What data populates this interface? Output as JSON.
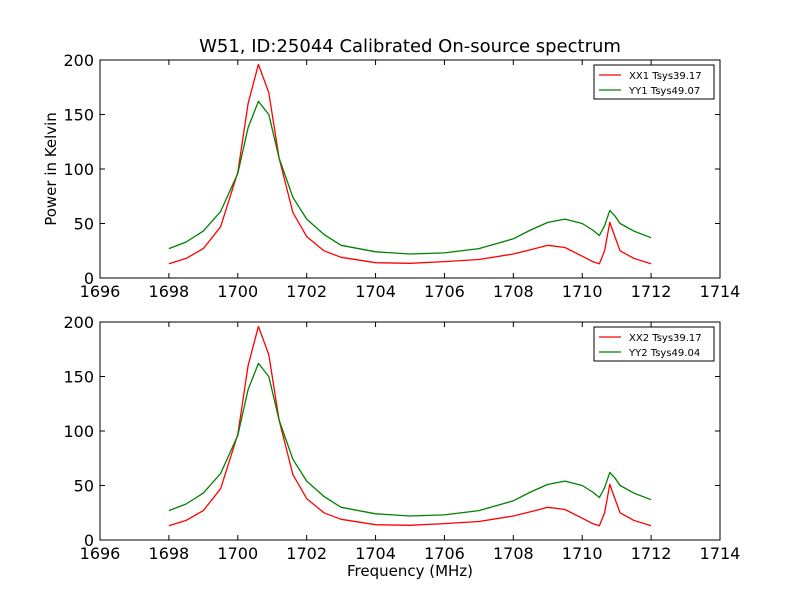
{
  "chart_data": [
    {
      "type": "line",
      "title": "W51, ID:25044 Calibrated On-source spectrum",
      "xlabel": "",
      "ylabel": "Power in Kelvin",
      "xlim": [
        1696,
        1714
      ],
      "ylim": [
        0,
        200
      ],
      "xticks": [
        "1696",
        "1698",
        "1700",
        "1702",
        "1704",
        "1706",
        "1708",
        "1710",
        "1712",
        "1714"
      ],
      "yticks": [
        "0",
        "50",
        "100",
        "150",
        "200"
      ],
      "legend": "top-right",
      "x": [
        1698,
        1698.5,
        1699,
        1699.5,
        1700,
        1700.3,
        1700.6,
        1700.9,
        1701.2,
        1701.6,
        1702,
        1702.5,
        1703,
        1704,
        1705,
        1706,
        1707,
        1708,
        1708.5,
        1709,
        1709.5,
        1710,
        1710.3,
        1710.5,
        1710.65,
        1710.8,
        1710.95,
        1711.1,
        1711.5,
        1712
      ],
      "series": [
        {
          "name": "XX1 Tsys39.17",
          "color": "#ff0000",
          "values": [
            13,
            18,
            27,
            47,
            97,
            160,
            196,
            170,
            110,
            60,
            38,
            25,
            19,
            14,
            13.5,
            15,
            17,
            22,
            26,
            30,
            28,
            20,
            15,
            13,
            25,
            51,
            38,
            25,
            18,
            13
          ]
        },
        {
          "name": "YY1 Tsys49.07",
          "color": "#008000",
          "values": [
            27,
            33,
            43,
            61,
            96,
            138,
            162,
            150,
            110,
            74,
            54,
            40,
            30,
            24,
            22,
            23,
            27,
            36,
            44,
            51,
            54,
            50,
            44,
            39,
            48,
            62,
            57,
            50,
            43,
            37
          ]
        }
      ]
    },
    {
      "type": "line",
      "title": "",
      "xlabel": "Frequency (MHz)",
      "ylabel": "",
      "xlim": [
        1696,
        1714
      ],
      "ylim": [
        0,
        200
      ],
      "xticks": [
        "1696",
        "1698",
        "1700",
        "1702",
        "1704",
        "1706",
        "1708",
        "1710",
        "1712",
        "1714"
      ],
      "yticks": [
        "0",
        "50",
        "100",
        "150",
        "200"
      ],
      "legend": "top-right",
      "x": [
        1698,
        1698.5,
        1699,
        1699.5,
        1700,
        1700.3,
        1700.6,
        1700.9,
        1701.2,
        1701.6,
        1702,
        1702.5,
        1703,
        1704,
        1705,
        1706,
        1707,
        1708,
        1708.5,
        1709,
        1709.5,
        1710,
        1710.3,
        1710.5,
        1710.65,
        1710.8,
        1710.95,
        1711.1,
        1711.5,
        1712
      ],
      "series": [
        {
          "name": "XX2 Tsys39.17",
          "color": "#ff0000",
          "values": [
            13,
            18,
            27,
            47,
            97,
            160,
            196,
            170,
            110,
            60,
            38,
            25,
            19,
            14,
            13.5,
            15,
            17,
            22,
            26,
            30,
            28,
            20,
            15,
            13,
            25,
            51,
            38,
            25,
            18,
            13
          ]
        },
        {
          "name": "YY2 Tsys49.04",
          "color": "#008000",
          "values": [
            27,
            33,
            43,
            61,
            96,
            138,
            162,
            150,
            110,
            74,
            54,
            40,
            30,
            24,
            22,
            23,
            27,
            36,
            44,
            51,
            54,
            50,
            44,
            39,
            48,
            62,
            57,
            50,
            43,
            37
          ]
        }
      ]
    }
  ]
}
